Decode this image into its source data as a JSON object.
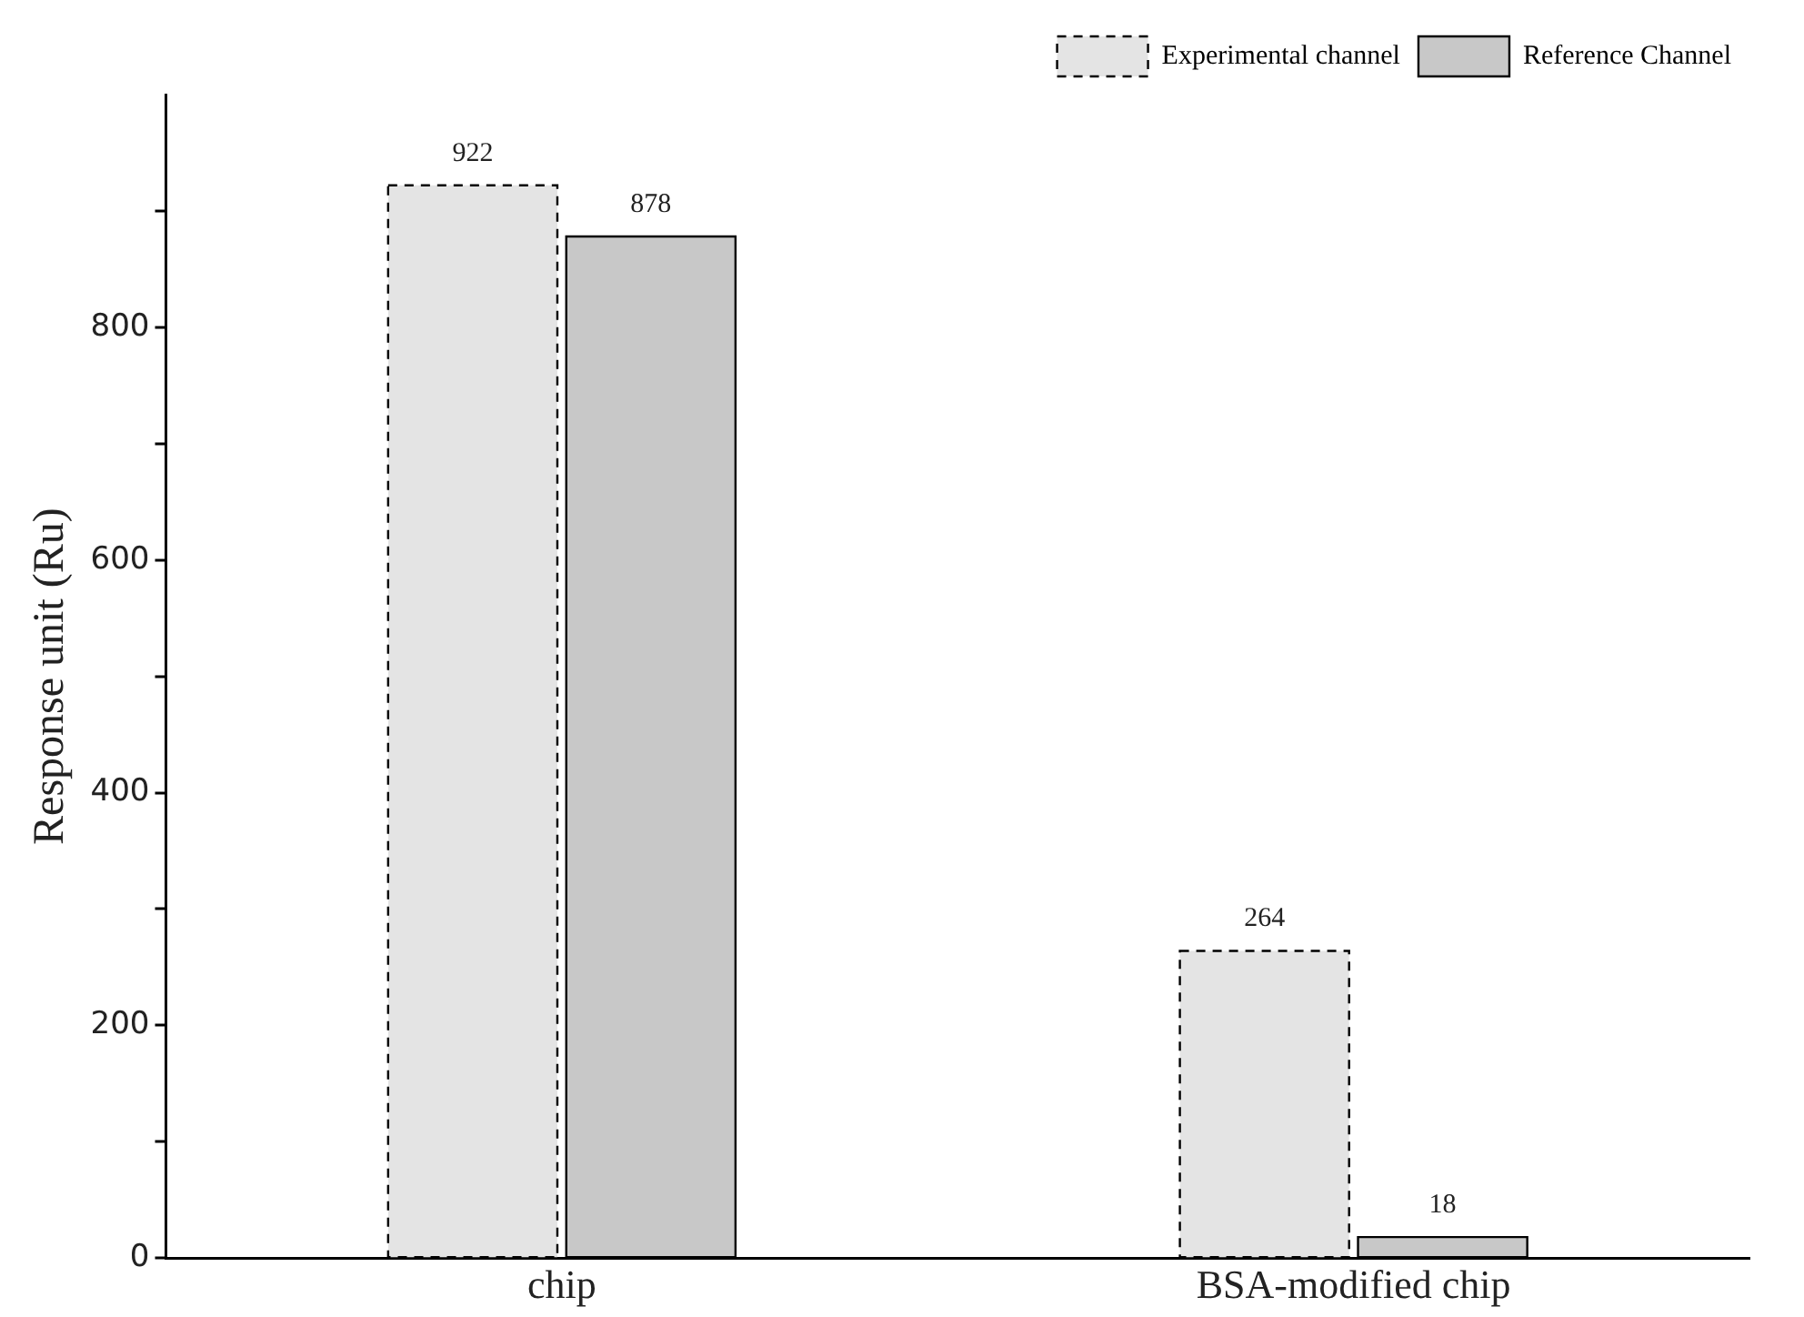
{
  "chart_data": {
    "type": "bar",
    "ylabel": "Response unit (Ru)",
    "categories": [
      "chip",
      "BSA-modified chip"
    ],
    "series": [
      {
        "name": "Experimental channel",
        "color": "#e4e4e4",
        "values": [
          922,
          264
        ],
        "line_style": "dashed"
      },
      {
        "name": "Reference Channel",
        "color": "#c8c8c8",
        "values": [
          878,
          18
        ],
        "line_style": "solid"
      }
    ],
    "ylim": [
      0,
      1000
    ],
    "yticks": [
      0,
      {
        "value": 100,
        "label": null
      },
      200,
      {
        "value": 300,
        "label": null
      },
      400,
      {
        "value": 500,
        "label": null
      },
      600,
      {
        "value": 700,
        "label": null
      },
      800,
      {
        "value": 900,
        "label": null
      }
    ],
    "data_labels": true,
    "grid": false,
    "legend": "top right"
  }
}
